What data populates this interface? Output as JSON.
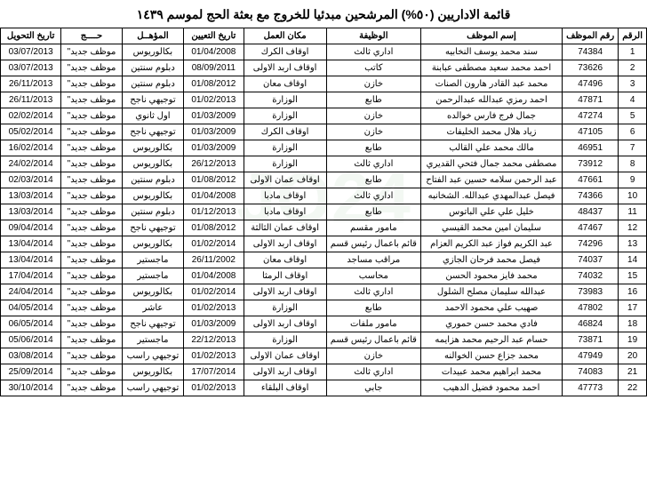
{
  "title": "قائمة الاداريين (٥٠%) المرشحين مبدئيا للخروج مع بعثة الحج لموسم ١٤٣٩",
  "columns": {
    "rownum": "الرقم",
    "empid": "رقم الموظف",
    "name": "إسم الموظف",
    "job": "الوظيفة",
    "place": "مكان العمل",
    "appt": "تاريخ التعيين",
    "qual": "المؤهــل",
    "hajj": "حــــج",
    "trans": "تاريخ التحويل"
  },
  "rows": [
    {
      "n": "1",
      "id": "74384",
      "name": "سند محمد يوسف النخابيه",
      "job": "اداري ثالث",
      "place": "اوقاف الكرك",
      "appt": "01/04/2008",
      "qual": "بكالوريوس",
      "hajj": "موظف جديد\"",
      "trans": "03/07/2013"
    },
    {
      "n": "2",
      "id": "73626",
      "name": "احمد محمد سعيد مصطفى عبابنة",
      "job": "كاتب",
      "place": "اوقاف اربد الاولى",
      "appt": "08/09/2011",
      "qual": "دبلوم سنتين",
      "hajj": "موظف جديد\"",
      "trans": "03/07/2013"
    },
    {
      "n": "3",
      "id": "47496",
      "name": "محمد عبد القادر هارون الصنات",
      "job": "خازن",
      "place": "اوقاف معان",
      "appt": "01/08/2012",
      "qual": "دبلوم سنتين",
      "hajj": "موظف جديد\"",
      "trans": "26/11/2013"
    },
    {
      "n": "4",
      "id": "47871",
      "name": "احمد رمزي عبدالله عبدالرحمن",
      "job": "طابع",
      "place": "الوزارة",
      "appt": "01/02/2013",
      "qual": "توجيهي ناجح",
      "hajj": "موظف جديد\"",
      "trans": "26/11/2013"
    },
    {
      "n": "5",
      "id": "47274",
      "name": "جمال فرج فارس خوالده",
      "job": "خازن",
      "place": "الوزارة",
      "appt": "01/03/2009",
      "qual": "اول ثانوي",
      "hajj": "موظف جديد\"",
      "trans": "02/02/2014"
    },
    {
      "n": "6",
      "id": "47105",
      "name": "زياد هلال محمد الخليفات",
      "job": "خازن",
      "place": "اوقاف الكرك",
      "appt": "01/03/2009",
      "qual": "توجيهي ناجح",
      "hajj": "موظف جديد\"",
      "trans": "05/02/2014"
    },
    {
      "n": "7",
      "id": "46951",
      "name": "مالك محمد علي القالب",
      "job": "طابع",
      "place": "الوزارة",
      "appt": "01/03/2009",
      "qual": "بكالوريوس",
      "hajj": "موظف جديد\"",
      "trans": "16/02/2014"
    },
    {
      "n": "8",
      "id": "73912",
      "name": "مصطفى محمد جمال فتحي القديري",
      "job": "اداري ثالث",
      "place": "الوزارة",
      "appt": "26/12/2013",
      "qual": "بكالوريوس",
      "hajj": "موظف جديد\"",
      "trans": "24/02/2014"
    },
    {
      "n": "9",
      "id": "47661",
      "name": "عبد الرحمن سلامه حسين عبد الفتاح",
      "job": "طابع",
      "place": "اوقاف عمان الاولى",
      "appt": "01/08/2012",
      "qual": "دبلوم سنتين",
      "hajj": "موظف جديد\"",
      "trans": "02/03/2014"
    },
    {
      "n": "10",
      "id": "74366",
      "name": "فيصل عبدالمهدي عبدالله. الشخانبه",
      "job": "اداري ثالث",
      "place": "اوقاف مادبا",
      "appt": "01/04/2008",
      "qual": "بكالوريوس",
      "hajj": "موظف جديد\"",
      "trans": "13/03/2014"
    },
    {
      "n": "11",
      "id": "48437",
      "name": "خليل علي علي الباتوس",
      "job": "طابع",
      "place": "اوقاف مادبا",
      "appt": "01/12/2013",
      "qual": "دبلوم سنتين",
      "hajj": "موظف جديد\"",
      "trans": "13/03/2014"
    },
    {
      "n": "12",
      "id": "47467",
      "name": "سليمان امين محمد القيسي",
      "job": "مامور مقسم",
      "place": "اوقاف عمان الثالثة",
      "appt": "01/08/2012",
      "qual": "توجيهي ناجح",
      "hajj": "موظف جديد\"",
      "trans": "09/04/2014"
    },
    {
      "n": "13",
      "id": "74296",
      "name": "عبد الكريم فواز عبد الكريم العزام",
      "job": "قائم باعمال رئيس قسم",
      "place": "اوقاف اربد الاولى",
      "appt": "01/02/2014",
      "qual": "بكالوريوس",
      "hajj": "موظف جديد\"",
      "trans": "13/04/2014"
    },
    {
      "n": "14",
      "id": "74037",
      "name": "فيصل محمد فرحان الجازي",
      "job": "مراقب مساجد",
      "place": "اوقاف معان",
      "appt": "26/11/2002",
      "qual": "ماجستير",
      "hajj": "موظف جديد\"",
      "trans": "13/04/2014"
    },
    {
      "n": "15",
      "id": "74032",
      "name": "محمد فايز محمود الحسن",
      "job": "محاسب",
      "place": "اوقاف الرمثا",
      "appt": "01/04/2008",
      "qual": "ماجستير",
      "hajj": "موظف جديد\"",
      "trans": "17/04/2014"
    },
    {
      "n": "16",
      "id": "73983",
      "name": "عبدالله سليمان مصلح الشلول",
      "job": "اداري ثالث",
      "place": "اوقاف اربد الاولى",
      "appt": "01/02/2014",
      "qual": "بكالوريوس",
      "hajj": "موظف جديد\"",
      "trans": "24/04/2014"
    },
    {
      "n": "17",
      "id": "47802",
      "name": "صهيب علي محمود الاحمد",
      "job": "طابع",
      "place": "الوزارة",
      "appt": "01/02/2013",
      "qual": "عاشر",
      "hajj": "موظف جديد\"",
      "trans": "04/05/2014"
    },
    {
      "n": "18",
      "id": "46824",
      "name": "فادي محمد حسن حموري",
      "job": "مامور ملفات",
      "place": "اوقاف اربد الاولى",
      "appt": "01/03/2009",
      "qual": "توجيهي ناجح",
      "hajj": "موظف جديد\"",
      "trans": "06/05/2014"
    },
    {
      "n": "19",
      "id": "73871",
      "name": "حسام عبد الرحيم محمد هزايمه",
      "job": "قائم باعمال رئيس قسم",
      "place": "الوزارة",
      "appt": "22/12/2013",
      "qual": "ماجستير",
      "hajj": "موظف جديد\"",
      "trans": "05/06/2014"
    },
    {
      "n": "20",
      "id": "47949",
      "name": "محمد جزاع حسن الخوالنه",
      "job": "خازن",
      "place": "اوقاف عمان الاولى",
      "appt": "01/02/2013",
      "qual": "توجيهي راسب",
      "hajj": "موظف جديد\"",
      "trans": "03/08/2014"
    },
    {
      "n": "21",
      "id": "74083",
      "name": "محمد ابراهيم محمد عبيدات",
      "job": "اداري ثالث",
      "place": "اوقاف اربد الاولى",
      "appt": "17/07/2014",
      "qual": "بكالوريوس",
      "hajj": "موظف جديد\"",
      "trans": "25/09/2014"
    },
    {
      "n": "22",
      "id": "47773",
      "name": "احمد محمود فضيل الدهيب",
      "job": "جابي",
      "place": "اوقاف البلقاء",
      "appt": "01/02/2013",
      "qual": "توجيهي راسب",
      "hajj": "موظف جديد\"",
      "trans": "30/10/2014"
    }
  ]
}
